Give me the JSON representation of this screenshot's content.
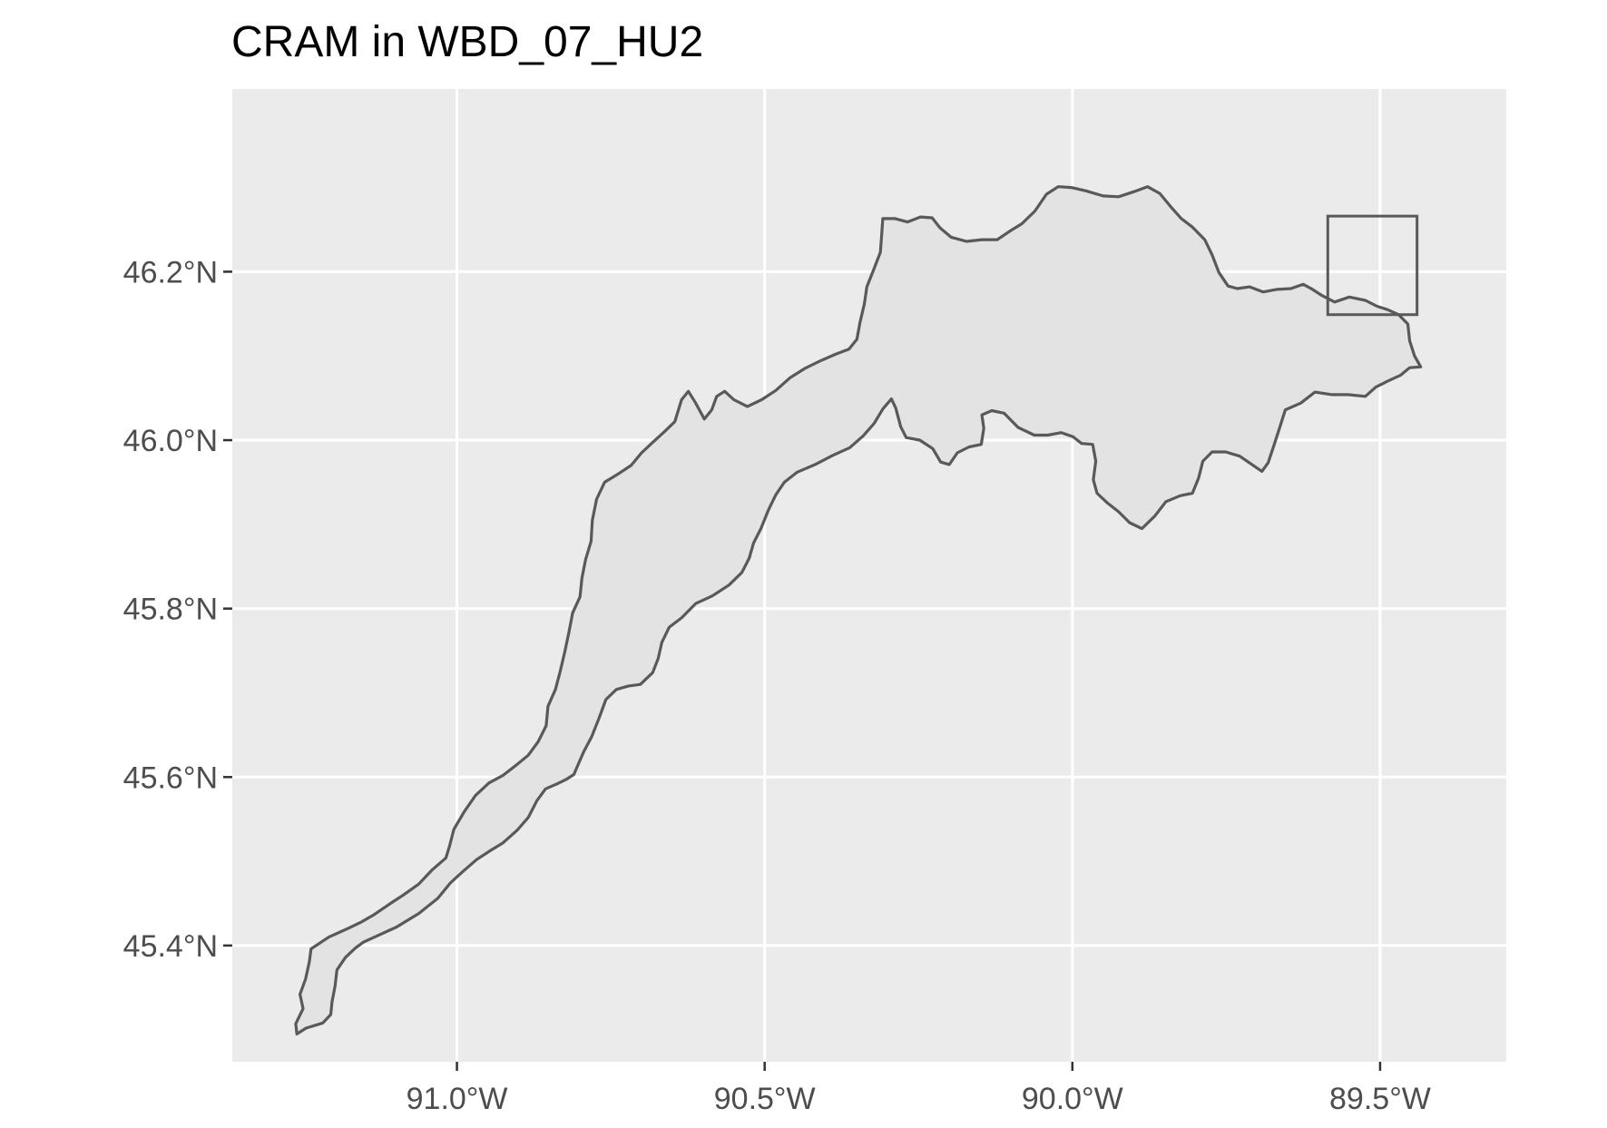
{
  "title": "CRAM in WBD_07_HU2",
  "colors": {
    "panel_background": "#ebebeb",
    "grid": "#ffffff",
    "polygon_fill": "#e3e3e3",
    "polygon_stroke": "#595959",
    "tick_text": "#4d4d4d",
    "title_text": "#000000"
  },
  "axes": {
    "x": {
      "range": [
        -91.365,
        -89.295
      ],
      "ticks": [
        {
          "value": -91.0,
          "label": "91.0°W"
        },
        {
          "value": -90.5,
          "label": "90.5°W"
        },
        {
          "value": -90.0,
          "label": "90.0°W"
        },
        {
          "value": -89.5,
          "label": "89.5°W"
        }
      ]
    },
    "y": {
      "range": [
        45.262,
        46.417
      ],
      "ticks": [
        {
          "value": 45.4,
          "label": "45.4°N"
        },
        {
          "value": 45.6,
          "label": "45.6°N"
        },
        {
          "value": 45.8,
          "label": "45.8°N"
        },
        {
          "value": 46.0,
          "label": "46.0°N"
        },
        {
          "value": 46.2,
          "label": "46.2°N"
        }
      ]
    },
    "grid": true
  },
  "layers": {
    "watershed_outline": [
      [
        -91.26,
        45.295
      ],
      [
        -91.245,
        45.302
      ],
      [
        -91.218,
        45.308
      ],
      [
        -91.205,
        45.318
      ],
      [
        -91.203,
        45.333
      ],
      [
        -91.198,
        45.352
      ],
      [
        -91.195,
        45.371
      ],
      [
        -91.181,
        45.386
      ],
      [
        -91.165,
        45.397
      ],
      [
        -91.152,
        45.404
      ],
      [
        -91.128,
        45.412
      ],
      [
        -91.098,
        45.422
      ],
      [
        -91.062,
        45.438
      ],
      [
        -91.031,
        45.456
      ],
      [
        -91.011,
        45.474
      ],
      [
        -90.99,
        45.488
      ],
      [
        -90.968,
        45.502
      ],
      [
        -90.945,
        45.513
      ],
      [
        -90.925,
        45.522
      ],
      [
        -90.902,
        45.537
      ],
      [
        -90.884,
        45.552
      ],
      [
        -90.87,
        45.572
      ],
      [
        -90.856,
        45.586
      ],
      [
        -90.837,
        45.592
      ],
      [
        -90.823,
        45.597
      ],
      [
        -90.81,
        45.603
      ],
      [
        -90.803,
        45.615
      ],
      [
        -90.794,
        45.63
      ],
      [
        -90.781,
        45.648
      ],
      [
        -90.769,
        45.67
      ],
      [
        -90.758,
        45.692
      ],
      [
        -90.741,
        45.704
      ],
      [
        -90.722,
        45.708
      ],
      [
        -90.702,
        45.71
      ],
      [
        -90.682,
        45.724
      ],
      [
        -90.673,
        45.741
      ],
      [
        -90.667,
        45.76
      ],
      [
        -90.655,
        45.778
      ],
      [
        -90.635,
        45.789
      ],
      [
        -90.612,
        45.806
      ],
      [
        -90.585,
        45.815
      ],
      [
        -90.558,
        45.828
      ],
      [
        -90.537,
        45.843
      ],
      [
        -90.525,
        45.86
      ],
      [
        -90.518,
        45.878
      ],
      [
        -90.506,
        45.895
      ],
      [
        -90.494,
        45.917
      ],
      [
        -90.482,
        45.935
      ],
      [
        -90.468,
        45.95
      ],
      [
        -90.447,
        45.962
      ],
      [
        -90.418,
        45.971
      ],
      [
        -90.389,
        45.982
      ],
      [
        -90.362,
        45.991
      ],
      [
        -90.34,
        46.005
      ],
      [
        -90.322,
        46.02
      ],
      [
        -90.308,
        46.037
      ],
      [
        -90.294,
        46.049
      ],
      [
        -90.287,
        46.038
      ],
      [
        -90.279,
        46.016
      ],
      [
        -90.27,
        46.003
      ],
      [
        -90.248,
        46.0
      ],
      [
        -90.227,
        45.99
      ],
      [
        -90.214,
        45.974
      ],
      [
        -90.2,
        45.971
      ],
      [
        -90.187,
        45.985
      ],
      [
        -90.168,
        45.992
      ],
      [
        -90.148,
        45.995
      ],
      [
        -90.144,
        46.014
      ],
      [
        -90.147,
        46.03
      ],
      [
        -90.131,
        46.035
      ],
      [
        -90.111,
        46.032
      ],
      [
        -90.088,
        46.015
      ],
      [
        -90.062,
        46.006
      ],
      [
        -90.04,
        46.006
      ],
      [
        -90.018,
        46.009
      ],
      [
        -89.999,
        46.004
      ],
      [
        -89.985,
        45.996
      ],
      [
        -89.967,
        45.995
      ],
      [
        -89.962,
        45.975
      ],
      [
        -89.966,
        45.953
      ],
      [
        -89.96,
        45.937
      ],
      [
        -89.944,
        45.926
      ],
      [
        -89.925,
        45.915
      ],
      [
        -89.907,
        45.902
      ],
      [
        -89.887,
        45.895
      ],
      [
        -89.866,
        45.91
      ],
      [
        -89.848,
        45.927
      ],
      [
        -89.825,
        45.934
      ],
      [
        -89.805,
        45.937
      ],
      [
        -89.795,
        45.955
      ],
      [
        -89.788,
        45.975
      ],
      [
        -89.773,
        45.986
      ],
      [
        -89.751,
        45.986
      ],
      [
        -89.728,
        45.981
      ],
      [
        -89.706,
        45.97
      ],
      [
        -89.692,
        45.963
      ],
      [
        -89.682,
        45.973
      ],
      [
        -89.672,
        45.995
      ],
      [
        -89.664,
        46.013
      ],
      [
        -89.654,
        46.036
      ],
      [
        -89.629,
        46.044
      ],
      [
        -89.606,
        46.057
      ],
      [
        -89.578,
        46.054
      ],
      [
        -89.552,
        46.054
      ],
      [
        -89.524,
        46.052
      ],
      [
        -89.507,
        46.063
      ],
      [
        -89.488,
        46.07
      ],
      [
        -89.467,
        46.077
      ],
      [
        -89.452,
        46.086
      ],
      [
        -89.434,
        46.087
      ],
      [
        -89.444,
        46.1
      ],
      [
        -89.452,
        46.118
      ],
      [
        -89.455,
        46.138
      ],
      [
        -89.47,
        46.149
      ],
      [
        -89.488,
        46.155
      ],
      [
        -89.505,
        46.159
      ],
      [
        -89.524,
        46.166
      ],
      [
        -89.55,
        46.17
      ],
      [
        -89.574,
        46.164
      ],
      [
        -89.595,
        46.172
      ],
      [
        -89.612,
        46.18
      ],
      [
        -89.625,
        46.185
      ],
      [
        -89.645,
        46.18
      ],
      [
        -89.668,
        46.179
      ],
      [
        -89.69,
        46.176
      ],
      [
        -89.712,
        46.182
      ],
      [
        -89.732,
        46.18
      ],
      [
        -89.747,
        46.183
      ],
      [
        -89.762,
        46.199
      ],
      [
        -89.773,
        46.22
      ],
      [
        -89.785,
        46.238
      ],
      [
        -89.805,
        46.253
      ],
      [
        -89.823,
        46.263
      ],
      [
        -89.84,
        46.277
      ],
      [
        -89.858,
        46.293
      ],
      [
        -89.878,
        46.301
      ],
      [
        -89.9,
        46.295
      ],
      [
        -89.925,
        46.289
      ],
      [
        -89.95,
        46.29
      ],
      [
        -89.978,
        46.296
      ],
      [
        -90.002,
        46.3
      ],
      [
        -90.023,
        46.301
      ],
      [
        -90.042,
        46.292
      ],
      [
        -90.061,
        46.272
      ],
      [
        -90.082,
        46.257
      ],
      [
        -90.102,
        46.248
      ],
      [
        -90.122,
        46.238
      ],
      [
        -90.147,
        46.238
      ],
      [
        -90.172,
        46.236
      ],
      [
        -90.197,
        46.241
      ],
      [
        -90.215,
        46.252
      ],
      [
        -90.228,
        46.264
      ],
      [
        -90.247,
        46.265
      ],
      [
        -90.268,
        46.259
      ],
      [
        -90.288,
        46.263
      ],
      [
        -90.308,
        46.263
      ],
      [
        -90.31,
        46.243
      ],
      [
        -90.312,
        46.223
      ],
      [
        -90.323,
        46.202
      ],
      [
        -90.334,
        46.182
      ],
      [
        -90.338,
        46.162
      ],
      [
        -90.345,
        46.14
      ],
      [
        -90.35,
        46.12
      ],
      [
        -90.363,
        46.108
      ],
      [
        -90.385,
        46.102
      ],
      [
        -90.41,
        46.094
      ],
      [
        -90.435,
        46.085
      ],
      [
        -90.459,
        46.074
      ],
      [
        -90.482,
        46.059
      ],
      [
        -90.505,
        46.048
      ],
      [
        -90.528,
        46.04
      ],
      [
        -90.55,
        46.048
      ],
      [
        -90.565,
        46.058
      ],
      [
        -90.578,
        46.052
      ],
      [
        -90.586,
        46.036
      ],
      [
        -90.598,
        46.025
      ],
      [
        -90.612,
        46.044
      ],
      [
        -90.624,
        46.058
      ],
      [
        -90.635,
        46.048
      ],
      [
        -90.646,
        46.022
      ],
      [
        -90.663,
        46.01
      ],
      [
        -90.681,
        45.998
      ],
      [
        -90.7,
        45.985
      ],
      [
        -90.717,
        45.97
      ],
      [
        -90.738,
        45.96
      ],
      [
        -90.76,
        45.95
      ],
      [
        -90.773,
        45.93
      ],
      [
        -90.78,
        45.905
      ],
      [
        -90.782,
        45.88
      ],
      [
        -90.791,
        45.858
      ],
      [
        -90.797,
        45.836
      ],
      [
        -90.8,
        45.814
      ],
      [
        -90.812,
        45.795
      ],
      [
        -90.818,
        45.772
      ],
      [
        -90.825,
        45.748
      ],
      [
        -90.832,
        45.726
      ],
      [
        -90.84,
        45.704
      ],
      [
        -90.852,
        45.684
      ],
      [
        -90.855,
        45.661
      ],
      [
        -90.868,
        45.642
      ],
      [
        -90.884,
        45.626
      ],
      [
        -90.904,
        45.614
      ],
      [
        -90.925,
        45.602
      ],
      [
        -90.948,
        45.593
      ],
      [
        -90.97,
        45.578
      ],
      [
        -90.988,
        45.559
      ],
      [
        -91.005,
        45.538
      ],
      [
        -91.012,
        45.518
      ],
      [
        -91.018,
        45.504
      ],
      [
        -91.04,
        45.49
      ],
      [
        -91.062,
        45.473
      ],
      [
        -91.087,
        45.46
      ],
      [
        -91.11,
        45.449
      ],
      [
        -91.134,
        45.437
      ],
      [
        -91.155,
        45.428
      ],
      [
        -91.178,
        45.42
      ],
      [
        -91.208,
        45.41
      ],
      [
        -91.237,
        45.396
      ],
      [
        -91.24,
        45.38
      ],
      [
        -91.246,
        45.36
      ],
      [
        -91.255,
        45.342
      ],
      [
        -91.25,
        45.325
      ],
      [
        -91.262,
        45.307
      ],
      [
        -91.26,
        45.295
      ]
    ],
    "extent_box": {
      "lon_min": -89.585,
      "lon_max": -89.44,
      "lat_min": 46.149,
      "lat_max": 46.266
    }
  }
}
